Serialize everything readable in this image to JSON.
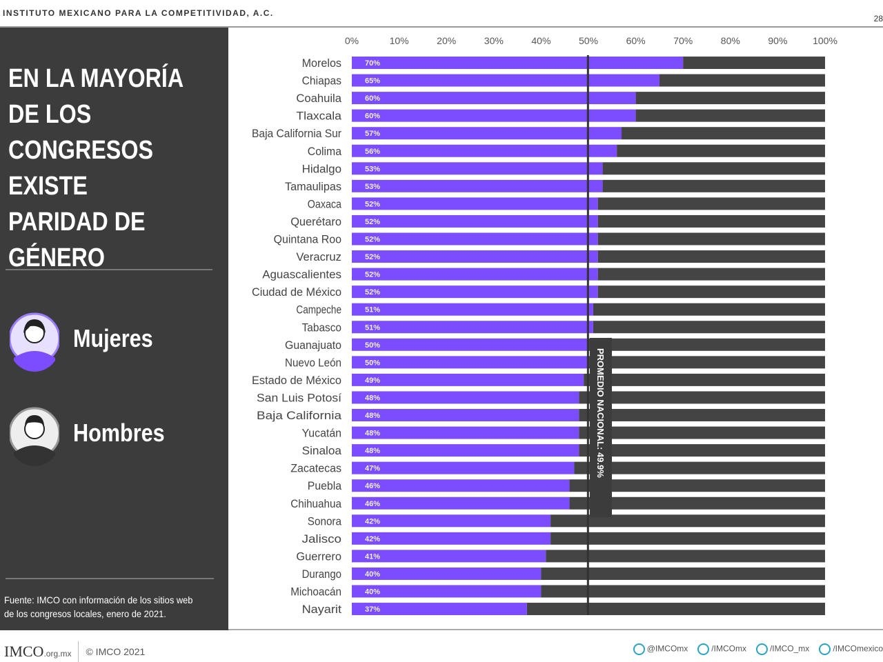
{
  "header": {
    "org": "INSTITUTO MEXICANO PARA LA COMPETITIVIDAD, A.C.",
    "page": "28"
  },
  "panel": {
    "title": "EN LA MAYORÍA DE LOS CONGRESOS EXISTE PARIDAD DE GÉNERO",
    "legend": [
      {
        "label": "Mujeres",
        "color": "#7c4dff",
        "icon": "woman-avatar-icon"
      },
      {
        "label": "Hombres",
        "color": "#444444",
        "icon": "man-avatar-icon"
      }
    ],
    "source": "Fuente: IMCO con información de los sitios web de los congresos locales, enero de 2021."
  },
  "footer": {
    "logo": "IMCO",
    "domain": ".org.mx",
    "copyright": "© IMCO 2021",
    "social": [
      {
        "icon": "twitter-icon",
        "handle": "@IMCOmx"
      },
      {
        "icon": "facebook-icon",
        "handle": "/IMCOmx"
      },
      {
        "icon": "instagram-icon",
        "handle": "/IMCO_mx"
      },
      {
        "icon": "linkedin-icon",
        "handle": "/IMCOmexico"
      }
    ]
  },
  "chart_data": {
    "type": "bar",
    "orientation": "horizontal",
    "stacked": true,
    "xlim": [
      0,
      100
    ],
    "xticks": [
      "0%",
      "10%",
      "20%",
      "30%",
      "40%",
      "50%",
      "60%",
      "70%",
      "80%",
      "90%",
      "100%"
    ],
    "categories": [
      "Morelos",
      "Chiapas",
      "Coahuila",
      "Tlaxcala",
      "Baja California Sur",
      "Colima",
      "Hidalgo",
      "Tamaulipas",
      "Oaxaca",
      "Querétaro",
      "Quintana Roo",
      "Veracruz",
      "Aguascalientes",
      "Ciudad de México",
      "Campeche",
      "Tabasco",
      "Guanajuato",
      "Nuevo León",
      "Estado de México",
      "San Luis Potosí",
      "Baja California",
      "Yucatán",
      "Sinaloa",
      "Zacatecas",
      "Puebla",
      "Chihuahua",
      "Sonora",
      "Jalisco",
      "Guerrero",
      "Durango",
      "Michoacán",
      "Nayarit"
    ],
    "series": [
      {
        "name": "Mujeres",
        "color": "#7c4dff",
        "values": [
          70,
          65,
          60,
          60,
          57,
          56,
          53,
          53,
          52,
          52,
          52,
          52,
          52,
          52,
          51,
          51,
          50,
          50,
          49,
          48,
          48,
          48,
          48,
          47,
          46,
          46,
          42,
          42,
          41,
          40,
          40,
          37
        ]
      },
      {
        "name": "Hombres",
        "color": "#444444",
        "values": [
          30,
          35,
          40,
          40,
          43,
          44,
          47,
          47,
          48,
          48,
          48,
          48,
          48,
          48,
          49,
          49,
          50,
          50,
          51,
          52,
          52,
          52,
          52,
          53,
          54,
          54,
          58,
          58,
          59,
          60,
          60,
          63
        ]
      }
    ],
    "data_labels": [
      "70%",
      "65%",
      "60%",
      "60%",
      "57%",
      "56%",
      "53%",
      "53%",
      "52%",
      "52%",
      "52%",
      "52%",
      "52%",
      "52%",
      "51%",
      "51%",
      "50%",
      "50%",
      "49%",
      "48%",
      "48%",
      "48%",
      "48%",
      "47%",
      "46%",
      "46%",
      "42%",
      "42%",
      "41%",
      "40%",
      "40%",
      "37%"
    ],
    "reference_line": {
      "value": 49.9,
      "label": "PROMEDIO NACIONAL: 49.9%"
    }
  }
}
